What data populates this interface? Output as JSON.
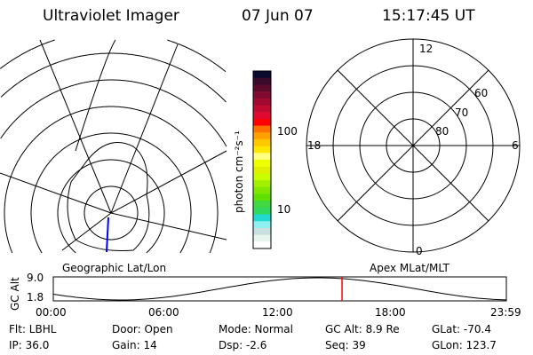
{
  "header": {
    "instrument": "Ultraviolet Imager",
    "date": "07 Jun 07",
    "time": "15:17:45 UT"
  },
  "colorbar": {
    "label": "photon cm⁻²s⁻¹",
    "ticks": [
      "100",
      "10"
    ],
    "colors": [
      "#0a0a30",
      "#3a0a2a",
      "#5a0a2a",
      "#800a30",
      "#a00a30",
      "#c00a30",
      "#e00a30",
      "#ff0000",
      "#ff7000",
      "#ffa000",
      "#ffc800",
      "#ffe600",
      "#ffff80",
      "#f0ff00",
      "#e0f000",
      "#c8ff00",
      "#a0f000",
      "#80e800",
      "#60e000",
      "#40d840",
      "#30d860",
      "#20d8d0",
      "#90f0f0",
      "#c8e0e0",
      "#e8f4ee",
      "#ffffff"
    ]
  },
  "left_map": {
    "label": "Geographic Lat/Lon"
  },
  "right_map": {
    "label": "Apex MLat/MLT",
    "mlt": [
      "12",
      "6",
      "0",
      "18"
    ],
    "mlat": [
      "60",
      "70",
      "80"
    ]
  },
  "timeline": {
    "ylabel": "GC Alt",
    "ymax": "9.0",
    "ymin": "1.8",
    "xticks": [
      "00:00",
      "06:00",
      "12:00",
      "18:00",
      "23:59"
    ],
    "current_hour": 15.296
  },
  "status": [
    [
      "Flt: LBHL",
      "IP: 36.0"
    ],
    [
      "Door: Open",
      "Gain: 14"
    ],
    [
      "Mode: Normal",
      "Dsp:    -2.6"
    ],
    [
      "GC Alt: 8.9 Re",
      "Seq: 39"
    ],
    [
      "GLat: -70.4",
      "GLon: 123.7"
    ]
  ]
}
